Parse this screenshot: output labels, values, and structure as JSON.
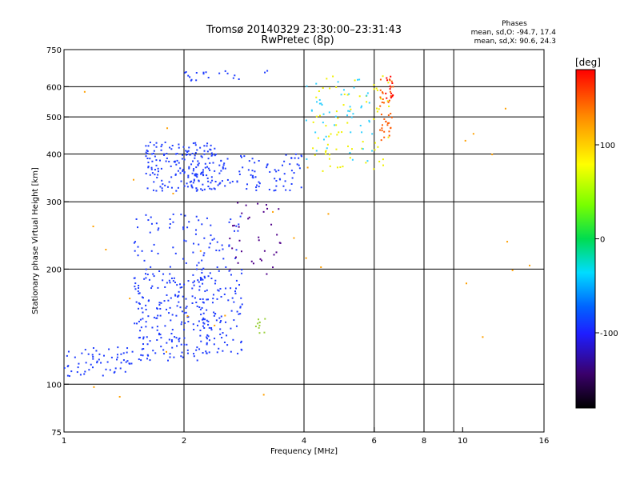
{
  "chart_data": {
    "type": "scatter",
    "title": "Tromsø 20140329 23:30:00–23:31:43",
    "subtitle": "RwPretec (8p)",
    "xlabel": "Frequency [MHz]",
    "ylabel": "Stationary phase Virtual Height [km]",
    "x_scale": "log",
    "y_scale": "log",
    "xlim": [
      1,
      16
    ],
    "ylim": [
      75,
      750
    ],
    "x_ticks": [
      1,
      2,
      4,
      6,
      8,
      10,
      16
    ],
    "y_ticks": [
      75,
      100,
      200,
      300,
      400,
      500,
      600,
      750
    ],
    "x_grid": [
      2,
      4,
      6,
      8,
      9.5
    ],
    "y_grid": [
      100,
      200,
      300,
      400,
      500,
      600
    ],
    "grid": true,
    "info": {
      "heading": "Phases",
      "line_o": "mean, sd,O: -94.7, 17.4",
      "line_x": "mean, sd,X:  90.6, 24.3"
    },
    "colorbar": {
      "label": "[deg]",
      "min": -180,
      "max": 180,
      "ticks": [
        -100,
        0,
        100
      ],
      "colormap": "rainbow"
    },
    "series": [
      {
        "color": "#1e3cff",
        "density": 60,
        "x_range": [
          1.0,
          1.5
        ],
        "y_range": [
          105,
          125
        ]
      },
      {
        "color": "#1e3cff",
        "density": 220,
        "x_range": [
          1.5,
          2.3
        ],
        "y_range": [
          115,
          200
        ]
      },
      {
        "color": "#1e3cff",
        "density": 90,
        "x_range": [
          2.2,
          2.8
        ],
        "y_range": [
          120,
          200
        ]
      },
      {
        "color": "#1e3cff",
        "density": 80,
        "x_range": [
          1.5,
          2.8
        ],
        "y_range": [
          200,
          280
        ]
      },
      {
        "color": "#1e3cff",
        "density": 160,
        "x_range": [
          1.6,
          2.4
        ],
        "y_range": [
          320,
          430
        ]
      },
      {
        "color": "#1e3cff",
        "density": 120,
        "x_range": [
          2.0,
          4.0
        ],
        "y_range": [
          320,
          400
        ]
      },
      {
        "color": "#f0f000",
        "density": 70,
        "x_range": [
          4.2,
          6.6
        ],
        "y_range": [
          360,
          640
        ]
      },
      {
        "color": "#ff5a00",
        "density": 40,
        "x_range": [
          6.2,
          6.7
        ],
        "y_range": [
          430,
          640
        ]
      },
      {
        "color": "#ff0000",
        "density": 12,
        "x_range": [
          6.4,
          6.7
        ],
        "y_range": [
          550,
          640
        ]
      },
      {
        "color": "#30d0ff",
        "density": 50,
        "x_range": [
          4.0,
          6.0
        ],
        "y_range": [
          380,
          640
        ]
      },
      {
        "color": "#1e3cff",
        "density": 20,
        "x_range": [
          2.0,
          3.3
        ],
        "y_range": [
          620,
          660
        ]
      },
      {
        "color": "#50008a",
        "density": 35,
        "x_range": [
          2.6,
          3.5
        ],
        "y_range": [
          190,
          300
        ]
      },
      {
        "color": "#9bd03c",
        "density": 10,
        "x_range": [
          3.0,
          3.2
        ],
        "y_range": [
          130,
          150
        ]
      },
      {
        "color": "#ffa000",
        "density": 30,
        "x_range": [
          1.0,
          15.5
        ],
        "y_range": [
          75,
          740
        ]
      }
    ]
  }
}
